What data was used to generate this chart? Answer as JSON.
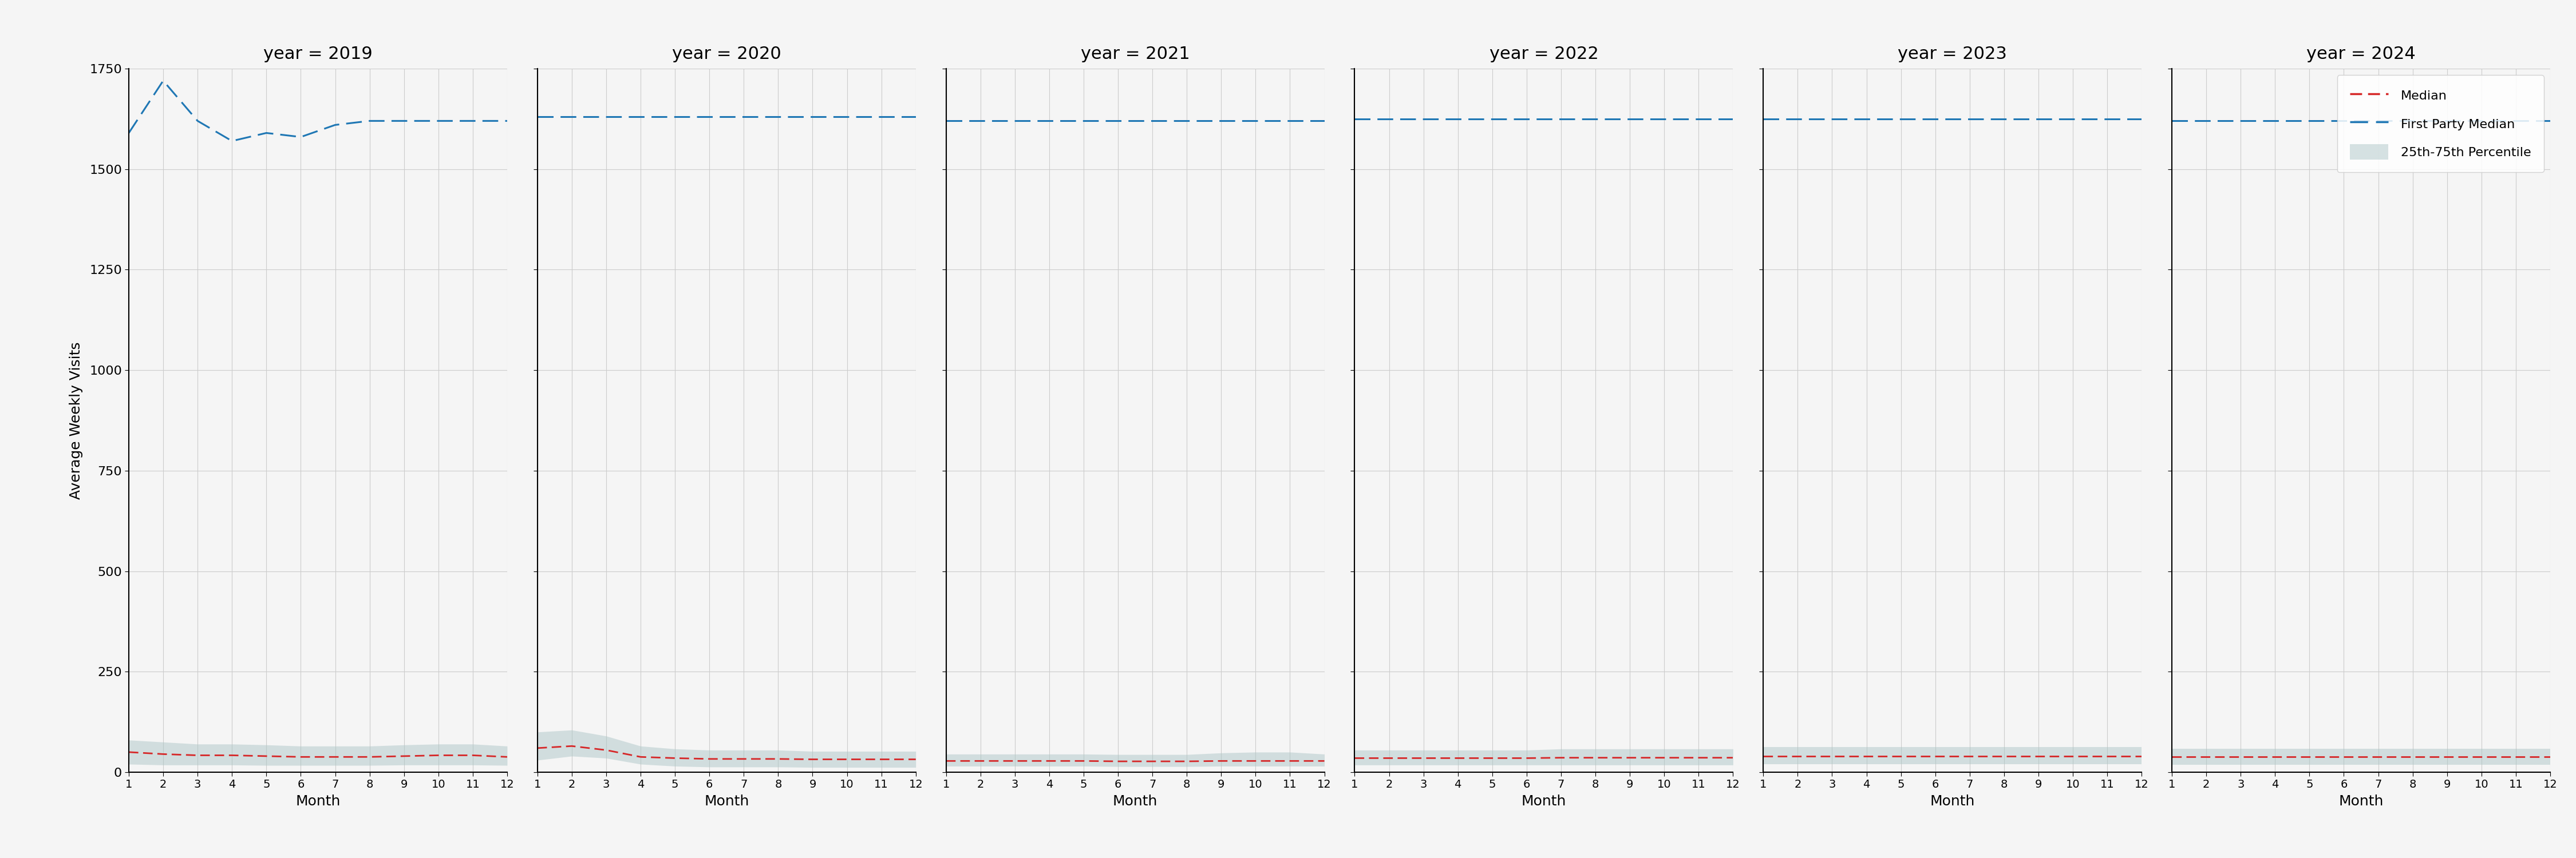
{
  "years": [
    2019,
    2020,
    2021,
    2022,
    2023,
    2024
  ],
  "months": [
    1,
    2,
    3,
    4,
    5,
    6,
    7,
    8,
    9,
    10,
    11,
    12
  ],
  "first_party_median": {
    "2019": [
      1590,
      1720,
      1620,
      1570,
      1590,
      1580,
      1610,
      1620,
      1620,
      1620,
      1620,
      1620
    ],
    "2020": [
      1630,
      1630,
      1630,
      1630,
      1630,
      1630,
      1630,
      1630,
      1630,
      1630,
      1630,
      1630
    ],
    "2021": [
      1620,
      1620,
      1620,
      1620,
      1620,
      1620,
      1620,
      1620,
      1620,
      1620,
      1620,
      1620
    ],
    "2022": [
      1625,
      1625,
      1625,
      1625,
      1625,
      1625,
      1625,
      1625,
      1625,
      1625,
      1625,
      1625
    ],
    "2023": [
      1625,
      1625,
      1625,
      1625,
      1625,
      1625,
      1625,
      1625,
      1625,
      1625,
      1625,
      1625
    ],
    "2024": [
      1620,
      1620,
      1620,
      1620,
      1620,
      1620,
      1620,
      1620,
      1620,
      1620,
      1620,
      1620
    ]
  },
  "median": {
    "2019": [
      50,
      45,
      42,
      42,
      40,
      38,
      38,
      38,
      40,
      42,
      42,
      38
    ],
    "2020": [
      60,
      65,
      55,
      38,
      35,
      33,
      33,
      33,
      32,
      32,
      32,
      32
    ],
    "2021": [
      28,
      28,
      28,
      28,
      28,
      27,
      27,
      27,
      28,
      28,
      28,
      28
    ],
    "2022": [
      35,
      35,
      35,
      35,
      35,
      35,
      36,
      36,
      36,
      36,
      36,
      36
    ],
    "2023": [
      40,
      40,
      40,
      40,
      40,
      40,
      40,
      40,
      40,
      40,
      40,
      40
    ],
    "2024": [
      38,
      38,
      38,
      38,
      38,
      38,
      38,
      38,
      38,
      38,
      38,
      38
    ]
  },
  "percentile_25": {
    "2019": [
      20,
      18,
      18,
      18,
      17,
      17,
      17,
      17,
      18,
      18,
      18,
      17
    ],
    "2020": [
      30,
      40,
      35,
      20,
      15,
      13,
      13,
      13,
      12,
      12,
      12,
      12
    ],
    "2021": [
      15,
      15,
      15,
      15,
      15,
      14,
      14,
      14,
      15,
      15,
      15,
      15
    ],
    "2022": [
      18,
      18,
      18,
      18,
      18,
      18,
      18,
      18,
      18,
      18,
      18,
      18
    ],
    "2023": [
      20,
      20,
      20,
      20,
      20,
      20,
      20,
      20,
      20,
      20,
      20,
      20
    ],
    "2024": [
      18,
      18,
      18,
      18,
      18,
      18,
      18,
      18,
      18,
      18,
      18,
      18
    ]
  },
  "percentile_75": {
    "2019": [
      80,
      75,
      70,
      70,
      68,
      65,
      65,
      65,
      68,
      70,
      70,
      65
    ],
    "2020": [
      100,
      105,
      90,
      65,
      58,
      55,
      55,
      55,
      52,
      52,
      52,
      52
    ],
    "2021": [
      45,
      45,
      45,
      45,
      45,
      44,
      44,
      44,
      48,
      50,
      50,
      45
    ],
    "2022": [
      55,
      55,
      55,
      55,
      55,
      55,
      58,
      58,
      58,
      58,
      58,
      58
    ],
    "2023": [
      62,
      62,
      62,
      62,
      62,
      62,
      62,
      62,
      62,
      62,
      62,
      62
    ],
    "2024": [
      58,
      58,
      58,
      58,
      58,
      58,
      58,
      58,
      58,
      58,
      58,
      58
    ]
  },
  "ylim": [
    0,
    1750
  ],
  "yticks": [
    0,
    250,
    500,
    750,
    1000,
    1250,
    1500,
    1750
  ],
  "ylabel": "Average Weekly Visits",
  "xlabel": "Month",
  "colors": {
    "first_party_median": "#1f77b4",
    "median": "#d62728",
    "percentile_band": "#aec7c8"
  },
  "background_color": "#f5f5f5",
  "grid_color": "#cccccc",
  "legend_labels": [
    "Median",
    "First Party Median",
    "25th-75th Percentile"
  ]
}
